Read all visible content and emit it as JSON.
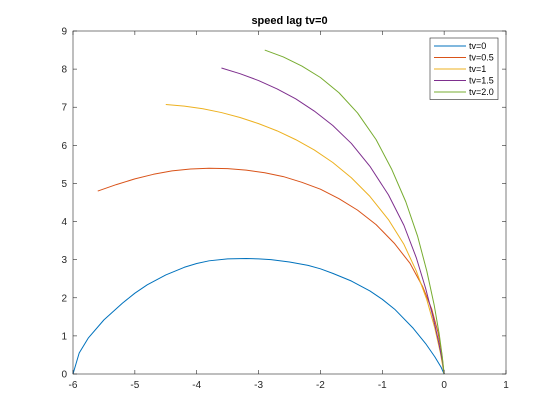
{
  "chart_data": {
    "type": "line",
    "title": "speed lag tv=0",
    "xlabel": "",
    "ylabel": "",
    "xlim": [
      -6,
      1
    ],
    "ylim": [
      0,
      9
    ],
    "xticks": [
      -6,
      -5,
      -4,
      -3,
      -2,
      -1,
      0,
      1
    ],
    "yticks": [
      0,
      1,
      2,
      3,
      4,
      5,
      6,
      7,
      8,
      9
    ],
    "grid": false,
    "legend_position": "top-right",
    "series": [
      {
        "name": "tv=0",
        "color": "#0072BD",
        "x": [
          -6.0,
          -5.9,
          -5.75,
          -5.5,
          -5.2,
          -5.0,
          -4.8,
          -4.5,
          -4.2,
          -4.0,
          -3.8,
          -3.5,
          -3.2,
          -3.0,
          -2.8,
          -2.5,
          -2.2,
          -2.0,
          -1.8,
          -1.5,
          -1.2,
          -1.0,
          -0.8,
          -0.5,
          -0.3,
          -0.15,
          -0.05,
          0.0
        ],
        "y": [
          0.0,
          0.55,
          0.95,
          1.42,
          1.86,
          2.12,
          2.34,
          2.6,
          2.8,
          2.9,
          2.97,
          3.02,
          3.03,
          3.02,
          3.0,
          2.94,
          2.85,
          2.76,
          2.64,
          2.44,
          2.18,
          1.96,
          1.7,
          1.2,
          0.8,
          0.45,
          0.18,
          0.0
        ]
      },
      {
        "name": "tv=0.5",
        "color": "#D95319",
        "x": [
          -5.6,
          -5.3,
          -5.0,
          -4.7,
          -4.4,
          -4.1,
          -3.8,
          -3.5,
          -3.2,
          -2.9,
          -2.6,
          -2.3,
          -2.0,
          -1.7,
          -1.4,
          -1.1,
          -0.8,
          -0.55,
          -0.35,
          -0.2,
          -0.1,
          -0.04,
          0.0
        ],
        "y": [
          4.8,
          4.97,
          5.12,
          5.24,
          5.33,
          5.38,
          5.4,
          5.39,
          5.35,
          5.28,
          5.18,
          5.03,
          4.85,
          4.6,
          4.3,
          3.92,
          3.42,
          2.9,
          2.3,
          1.7,
          1.1,
          0.55,
          0.0
        ]
      },
      {
        "name": "tv=1",
        "color": "#EDB120",
        "x": [
          -4.5,
          -4.2,
          -3.9,
          -3.6,
          -3.3,
          -3.0,
          -2.7,
          -2.4,
          -2.1,
          -1.8,
          -1.5,
          -1.2,
          -0.9,
          -0.65,
          -0.45,
          -0.28,
          -0.15,
          -0.06,
          0.0
        ],
        "y": [
          7.07,
          7.03,
          6.96,
          6.86,
          6.73,
          6.57,
          6.38,
          6.15,
          5.88,
          5.55,
          5.15,
          4.66,
          4.05,
          3.4,
          2.7,
          1.95,
          1.2,
          0.55,
          0.0
        ]
      },
      {
        "name": "tv=1.5",
        "color": "#7E2F8E",
        "x": [
          -3.6,
          -3.3,
          -3.0,
          -2.7,
          -2.4,
          -2.1,
          -1.8,
          -1.5,
          -1.2,
          -0.9,
          -0.65,
          -0.45,
          -0.3,
          -0.18,
          -0.09,
          -0.03,
          0.0
        ],
        "y": [
          8.03,
          7.88,
          7.7,
          7.48,
          7.22,
          6.9,
          6.52,
          6.05,
          5.45,
          4.7,
          3.9,
          3.05,
          2.25,
          1.5,
          0.85,
          0.35,
          0.0
        ]
      },
      {
        "name": "tv=2.0",
        "color": "#77AC30",
        "x": [
          -2.9,
          -2.6,
          -2.3,
          -2.0,
          -1.7,
          -1.4,
          -1.1,
          -0.85,
          -0.62,
          -0.43,
          -0.28,
          -0.16,
          -0.08,
          -0.03,
          0.0
        ],
        "y": [
          8.5,
          8.32,
          8.08,
          7.78,
          7.38,
          6.85,
          6.15,
          5.38,
          4.52,
          3.62,
          2.7,
          1.8,
          1.05,
          0.45,
          0.0
        ]
      }
    ]
  }
}
